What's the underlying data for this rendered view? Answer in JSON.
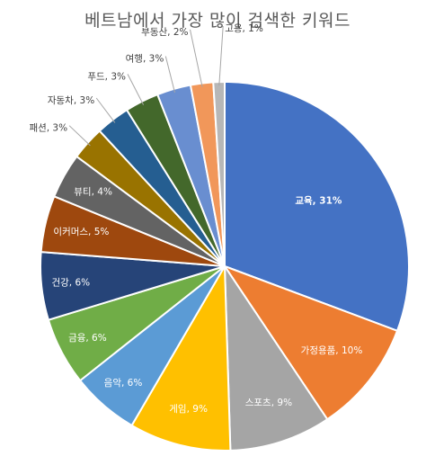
{
  "chart_data": {
    "type": "pie",
    "title": "베트남에서 가장 많이 검색한 키워드",
    "slices": [
      {
        "name": "교육",
        "value": 31,
        "label": "교육, 31%",
        "color": "#4472C4"
      },
      {
        "name": "가정용품",
        "value": 10,
        "label": "가정용품, 10%",
        "color": "#ED7D31"
      },
      {
        "name": "스포츠",
        "value": 9,
        "label": "스포츠, 9%",
        "color": "#A5A5A5"
      },
      {
        "name": "게임",
        "value": 9,
        "label": "게임, 9%",
        "color": "#FFC000"
      },
      {
        "name": "음악",
        "value": 6,
        "label": "음악, 6%",
        "color": "#5B9BD5"
      },
      {
        "name": "금융",
        "value": 6,
        "label": "금융, 6%",
        "color": "#70AD47"
      },
      {
        "name": "건강",
        "value": 6,
        "label": "건강, 6%",
        "color": "#264478"
      },
      {
        "name": "이커머스",
        "value": 5,
        "label": "이커머스, 5%",
        "color": "#9E480E"
      },
      {
        "name": "뷰티",
        "value": 4,
        "label": "뷰티, 4%",
        "color": "#636363"
      },
      {
        "name": "패션",
        "value": 3,
        "label": "패션, 3%",
        "color": "#997300"
      },
      {
        "name": "자동차",
        "value": 3,
        "label": "자동차, 3%",
        "color": "#255E91"
      },
      {
        "name": "푸드",
        "value": 3,
        "label": "푸드, 3%",
        "color": "#43682B"
      },
      {
        "name": "여행",
        "value": 3,
        "label": "여행, 3%",
        "color": "#698ED0"
      },
      {
        "name": "부동산",
        "value": 2,
        "label": "부동산, 2%",
        "color": "#F1975A"
      },
      {
        "name": "고용",
        "value": 1,
        "label": "고용, 1%",
        "color": "#B7B7B7"
      }
    ]
  }
}
